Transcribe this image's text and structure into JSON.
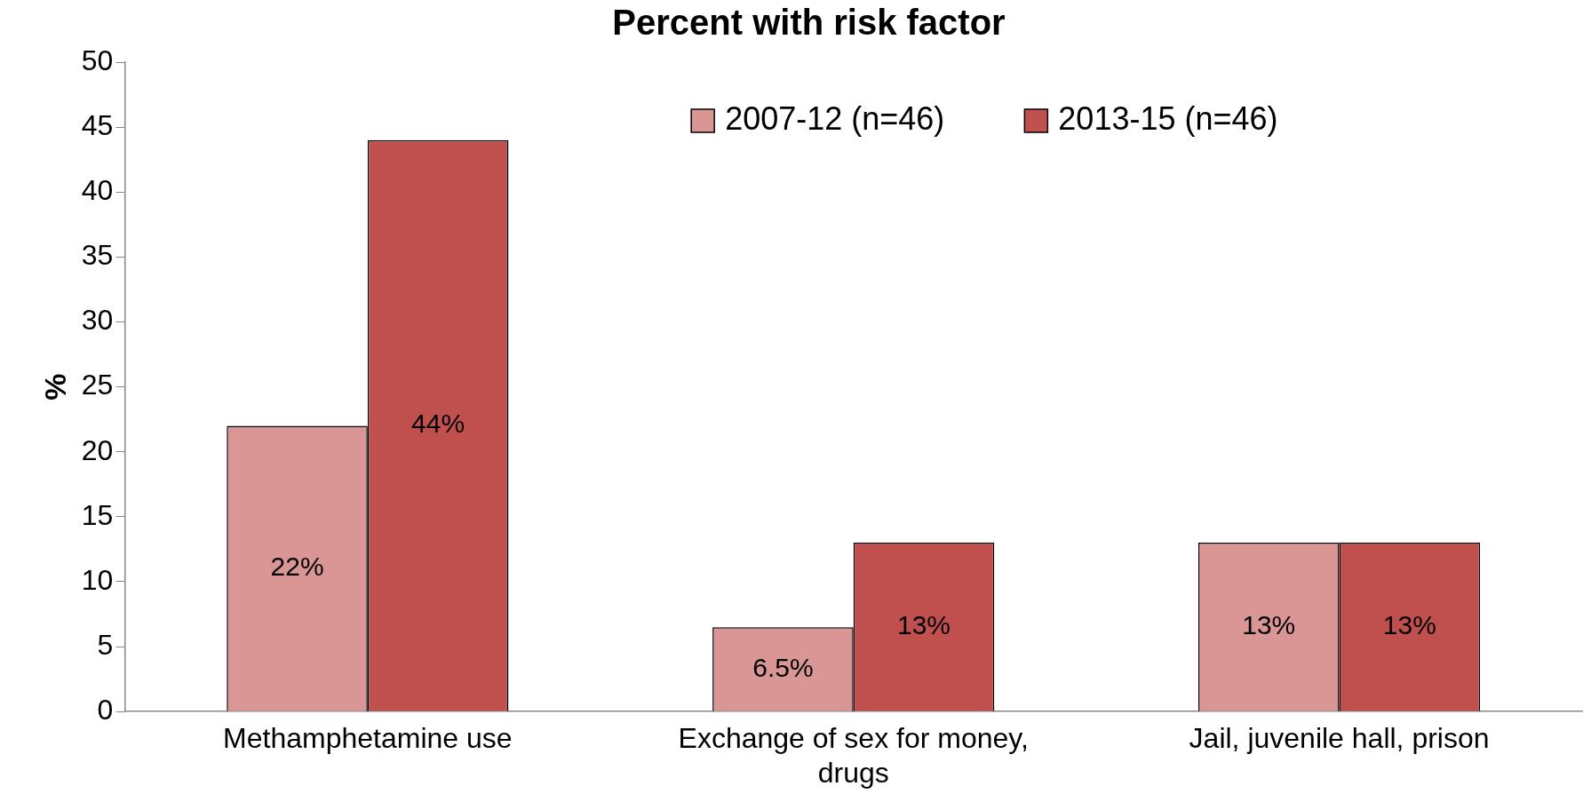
{
  "chart_data": {
    "type": "bar",
    "title": "Percent with risk factor",
    "ylabel": "%",
    "categories": [
      "Methamphetamine use",
      "Exchange of sex for money, drugs",
      "Jail, juvenile hall, prison"
    ],
    "series": [
      {
        "name": "2007-12 (n=46)",
        "color": "#d99694",
        "values": [
          22,
          6.5,
          13
        ],
        "value_labels": [
          "22%",
          "6.5%",
          "13%"
        ]
      },
      {
        "name": "2013-15 (n=46)",
        "color": "#c0504d",
        "values": [
          44,
          13,
          13
        ],
        "value_labels": [
          "44%",
          "13%",
          "13%"
        ]
      }
    ],
    "ylim": [
      0,
      50
    ],
    "yticks": [
      0,
      5,
      10,
      15,
      20,
      25,
      30,
      35,
      40,
      45,
      50
    ],
    "grid": false,
    "legend": "top"
  }
}
